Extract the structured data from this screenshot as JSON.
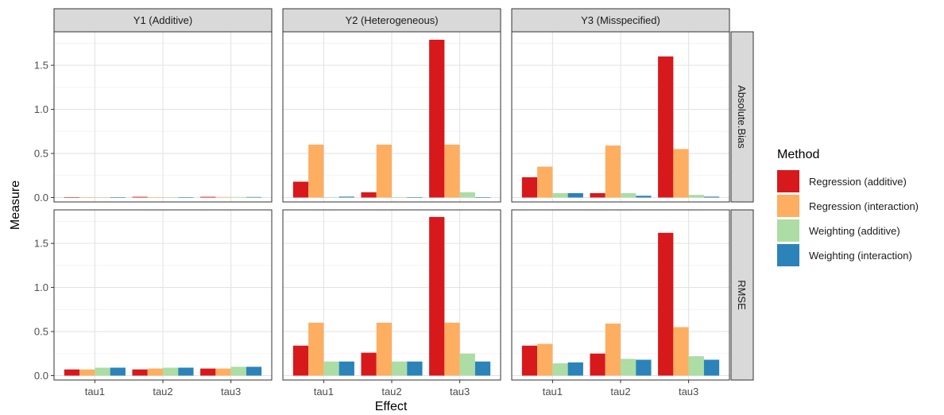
{
  "chart_data": {
    "type": "bar",
    "ylabel": "Measure",
    "xlabel": "Effect",
    "categories": [
      "tau1",
      "tau2",
      "tau3"
    ],
    "column_facets": [
      "Y1 (Additive)",
      "Y2 (Heterogeneous)",
      "Y3 (Misspecified)"
    ],
    "row_facets": [
      "Absolute.Bias",
      "RMSE"
    ],
    "ylim": [
      -0.05,
      1.88
    ],
    "yticks": [
      "0.0",
      "0.5",
      "1.0",
      "1.5"
    ],
    "grid": true,
    "legend": {
      "title": "Method",
      "position": "right",
      "items": [
        {
          "name": "Regression (additive)",
          "color": "#d7191c"
        },
        {
          "name": "Regression (interaction)",
          "color": "#fdae61"
        },
        {
          "name": "Weighting (additive)",
          "color": "#abdda4"
        },
        {
          "name": "Weighting (interaction)",
          "color": "#2b83ba"
        }
      ]
    },
    "panels": [
      {
        "row": "Absolute.Bias",
        "col": "Y1 (Additive)",
        "series": [
          {
            "name": "Regression (additive)",
            "values": [
              0.004,
              0.008,
              0.008
            ]
          },
          {
            "name": "Regression (interaction)",
            "values": [
              0.004,
              0.004,
              0.006
            ]
          },
          {
            "name": "Weighting (additive)",
            "values": [
              0.003,
              0.003,
              0.006
            ]
          },
          {
            "name": "Weighting (interaction)",
            "values": [
              0.003,
              0.003,
              0.006
            ]
          }
        ]
      },
      {
        "row": "Absolute.Bias",
        "col": "Y2 (Heterogeneous)",
        "series": [
          {
            "name": "Regression (additive)",
            "values": [
              0.18,
              0.06,
              1.79
            ]
          },
          {
            "name": "Regression (interaction)",
            "values": [
              0.6,
              0.6,
              0.6
            ]
          },
          {
            "name": "Weighting (additive)",
            "values": [
              0.005,
              0.003,
              0.06
            ]
          },
          {
            "name": "Weighting (interaction)",
            "values": [
              0.01,
              0.003,
              0.003
            ]
          }
        ]
      },
      {
        "row": "Absolute.Bias",
        "col": "Y3 (Misspecified)",
        "series": [
          {
            "name": "Regression (additive)",
            "values": [
              0.23,
              0.05,
              1.6
            ]
          },
          {
            "name": "Regression (interaction)",
            "values": [
              0.35,
              0.59,
              0.55
            ]
          },
          {
            "name": "Weighting (additive)",
            "values": [
              0.05,
              0.05,
              0.03
            ]
          },
          {
            "name": "Weighting (interaction)",
            "values": [
              0.05,
              0.02,
              0.01
            ]
          }
        ]
      },
      {
        "row": "RMSE",
        "col": "Y1 (Additive)",
        "series": [
          {
            "name": "Regression (additive)",
            "values": [
              0.07,
              0.07,
              0.08
            ]
          },
          {
            "name": "Regression (interaction)",
            "values": [
              0.07,
              0.08,
              0.08
            ]
          },
          {
            "name": "Weighting (additive)",
            "values": [
              0.09,
              0.09,
              0.1
            ]
          },
          {
            "name": "Weighting (interaction)",
            "values": [
              0.09,
              0.09,
              0.1
            ]
          }
        ]
      },
      {
        "row": "RMSE",
        "col": "Y2 (Heterogeneous)",
        "series": [
          {
            "name": "Regression (additive)",
            "values": [
              0.34,
              0.26,
              1.8
            ]
          },
          {
            "name": "Regression (interaction)",
            "values": [
              0.6,
              0.6,
              0.6
            ]
          },
          {
            "name": "Weighting (additive)",
            "values": [
              0.16,
              0.16,
              0.25
            ]
          },
          {
            "name": "Weighting (interaction)",
            "values": [
              0.16,
              0.16,
              0.16
            ]
          }
        ]
      },
      {
        "row": "RMSE",
        "col": "Y3 (Misspecified)",
        "series": [
          {
            "name": "Regression (additive)",
            "values": [
              0.34,
              0.25,
              1.62
            ]
          },
          {
            "name": "Regression (interaction)",
            "values": [
              0.36,
              0.59,
              0.55
            ]
          },
          {
            "name": "Weighting (additive)",
            "values": [
              0.14,
              0.19,
              0.22
            ]
          },
          {
            "name": "Weighting (interaction)",
            "values": [
              0.15,
              0.18,
              0.18
            ]
          }
        ]
      }
    ]
  }
}
